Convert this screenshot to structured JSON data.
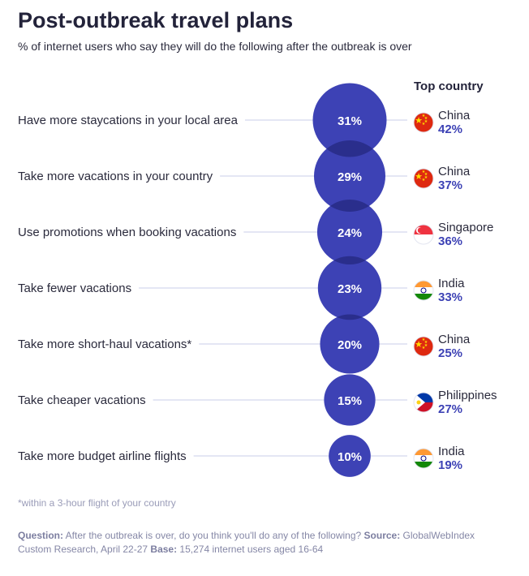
{
  "title": "Post-outbreak travel plans",
  "subtitle": "% of internet users who say they will do the following after the outbreak is over",
  "top_country_header": "Top country",
  "footnote": "*within a 3-hour flight of your country",
  "source": {
    "question_label": "Question:",
    "question_text": " After the outbreak is over, do you think you'll do any of the following? ",
    "source_label": "Source:",
    "source_text": " GlobalWebIndex Custom Research, April 22-27 ",
    "base_label": "Base:",
    "base_text": " 15,274 internet users aged 16-64"
  },
  "colors": {
    "bubble": "#3d42b5",
    "bubble_overlap": "#2a2e8c",
    "connector": "#c9cde8",
    "top_value": "#3d42b5"
  },
  "chart_data": {
    "type": "bubble",
    "unit": "%",
    "items": [
      {
        "label": "Have more staycations in your local area",
        "value": 31,
        "value_label": "31%",
        "top_country": "China",
        "top_value": 42,
        "top_value_label": "42%",
        "flag": "china-flag-icon"
      },
      {
        "label": "Take more vacations in your country",
        "value": 29,
        "value_label": "29%",
        "top_country": "China",
        "top_value": 37,
        "top_value_label": "37%",
        "flag": "china-flag-icon"
      },
      {
        "label": "Use promotions when booking vacations",
        "value": 24,
        "value_label": "24%",
        "top_country": "Singapore",
        "top_value": 36,
        "top_value_label": "36%",
        "flag": "singapore-flag-icon"
      },
      {
        "label": "Take fewer vacations",
        "value": 23,
        "value_label": "23%",
        "top_country": "India",
        "top_value": 33,
        "top_value_label": "33%",
        "flag": "india-flag-icon"
      },
      {
        "label": "Take more short-haul vacations*",
        "value": 20,
        "value_label": "20%",
        "top_country": "China",
        "top_value": 25,
        "top_value_label": "25%",
        "flag": "china-flag-icon"
      },
      {
        "label": "Take cheaper vacations",
        "value": 15,
        "value_label": "15%",
        "top_country": "Philippines",
        "top_value": 27,
        "top_value_label": "27%",
        "flag": "philippines-flag-icon"
      },
      {
        "label": "Take more budget airline flights",
        "value": 10,
        "value_label": "10%",
        "top_country": "India",
        "top_value": 19,
        "top_value_label": "19%",
        "flag": "india-flag-icon"
      }
    ]
  }
}
